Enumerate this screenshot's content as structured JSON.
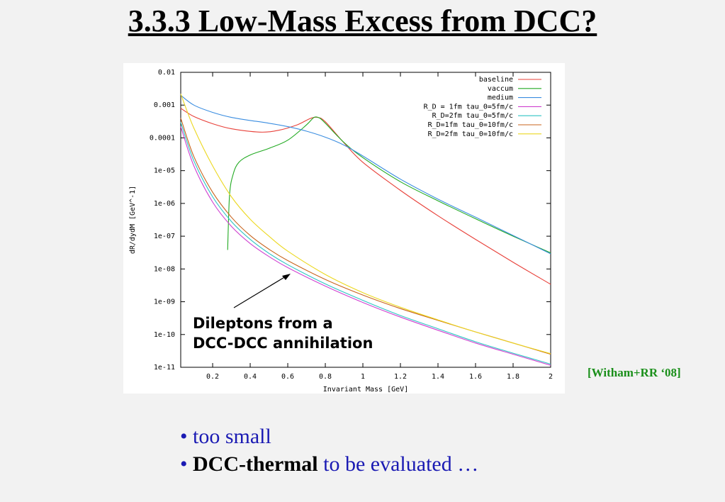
{
  "slide": {
    "title": "3.3.3  Low-Mass Excess from DCC?",
    "citation": "[Witham+RR ‘08]",
    "annotation_line1": "Dileptons from a",
    "annotation_line2": "DCC-DCC annihilation",
    "bullet1": "too small",
    "bullet2_bold": "DCC-thermal",
    "bullet2_rest": "to be evaluated …",
    "bullet_marker": "•"
  },
  "chart_data": {
    "type": "line",
    "xlabel": "Invariant Mass [GeV]",
    "ylabel": "dR/dydM [GeV^-1]",
    "xlim": [
      0.03,
      2.0
    ],
    "ylim": [
      1e-11,
      0.01
    ],
    "yscale": "log",
    "grid": false,
    "legend_position": "top-right",
    "x_ticks": [
      0.2,
      0.4,
      0.6,
      0.8,
      1.0,
      1.2,
      1.4,
      1.6,
      1.8,
      2.0
    ],
    "x_tick_labels": [
      "0.2",
      "0.4",
      "0.6",
      "0.8",
      "1",
      "1.2",
      "1.4",
      "1.6",
      "1.8",
      "2"
    ],
    "y_ticks": [
      1e-11,
      1e-10,
      1e-09,
      1e-08,
      1e-07,
      1e-06,
      1e-05,
      0.0001,
      0.001,
      0.01
    ],
    "y_tick_labels": [
      "1e-11",
      "1e-10",
      "1e-09",
      "1e-08",
      "1e-07",
      "1e-06",
      "1e-05",
      "0.0001",
      "0.001",
      "0.01"
    ],
    "series": [
      {
        "name": "baseline",
        "color": "#e8413a",
        "x": [
          0.03,
          0.1,
          0.2,
          0.3,
          0.45,
          0.55,
          0.65,
          0.72,
          0.76,
          0.8,
          0.9,
          1.0,
          1.2,
          1.4,
          1.6,
          1.8,
          2.0
        ],
        "y": [
          0.0008,
          0.00045,
          0.00027,
          0.00019,
          0.00015,
          0.00017,
          0.00025,
          0.00039,
          0.00042,
          0.00031,
          7e-05,
          1.8e-05,
          2.5e-06,
          4.2e-07,
          8e-08,
          1.6e-08,
          3.4e-09
        ]
      },
      {
        "name": "vaccum",
        "color": "#22aa22",
        "x": [
          0.28,
          0.29,
          0.31,
          0.34,
          0.4,
          0.5,
          0.6,
          0.7,
          0.74,
          0.77,
          0.8,
          0.9,
          1.0,
          1.2,
          1.4,
          1.6,
          1.8,
          2.0
        ],
        "y": [
          3.8e-08,
          1.8e-06,
          8e-06,
          1.8e-05,
          3e-05,
          4.8e-05,
          8.5e-05,
          0.00025,
          0.00042,
          0.0004,
          0.00028,
          7.2e-05,
          2.5e-05,
          4.6e-06,
          1.2e-06,
          3.4e-07,
          1e-07,
          3.1e-08
        ]
      },
      {
        "name": "medium",
        "color": "#3a8de0",
        "x": [
          0.03,
          0.1,
          0.2,
          0.3,
          0.4,
          0.5,
          0.6,
          0.7,
          0.8,
          0.9,
          1.0,
          1.2,
          1.4,
          1.6,
          1.8,
          2.0
        ],
        "y": [
          0.002,
          0.001,
          0.0006,
          0.00042,
          0.00034,
          0.00028,
          0.00022,
          0.00016,
          0.000105,
          6e-05,
          2.8e-05,
          5.5e-06,
          1.35e-06,
          3.8e-07,
          1.05e-07,
          2.9e-08
        ]
      },
      {
        "name": "R_D = 1fm  tau_0=5fm/c",
        "color": "#d040d0",
        "x": [
          0.03,
          0.1,
          0.2,
          0.3,
          0.4,
          0.5,
          0.6,
          0.8,
          1.0,
          1.2,
          1.4,
          1.6,
          1.8,
          2.0
        ],
        "y": [
          0.00022,
          1.4e-05,
          1.1e-06,
          2e-07,
          6e-08,
          2.4e-08,
          1.1e-08,
          3e-09,
          9.5e-10,
          3.4e-10,
          1.35e-10,
          5.5e-11,
          2.5e-11,
          1.15e-11
        ]
      },
      {
        "name": "R_D=2fm  tau_0=5fm/c",
        "color": "#2ec4c4",
        "x": [
          0.03,
          0.1,
          0.2,
          0.3,
          0.4,
          0.5,
          0.6,
          0.8,
          1.0,
          1.2,
          1.4,
          1.6,
          1.8,
          2.0
        ],
        "y": [
          0.0003,
          2e-05,
          1.6e-06,
          2.8e-07,
          8e-08,
          3e-08,
          1.35e-08,
          3.5e-09,
          1.1e-09,
          3.8e-10,
          1.5e-10,
          6e-11,
          2.7e-11,
          1.25e-11
        ]
      },
      {
        "name": "R_D=1fm  tau_0=10fm/c",
        "color": "#c8641e",
        "x": [
          0.03,
          0.1,
          0.2,
          0.3,
          0.4,
          0.5,
          0.6,
          0.8,
          1.0,
          1.2,
          1.4,
          1.6,
          1.8,
          2.0
        ],
        "y": [
          0.0004,
          2.7e-05,
          2.2e-06,
          3.8e-07,
          1.05e-07,
          4e-08,
          1.8e-08,
          4.8e-09,
          1.6e-09,
          6.2e-10,
          2.7e-10,
          1.2e-10,
          5.5e-11,
          2.5e-11
        ]
      },
      {
        "name": "R_D=2fm  tau_0=10fm/c",
        "color": "#ecd820",
        "x": [
          0.03,
          0.1,
          0.2,
          0.3,
          0.4,
          0.5,
          0.6,
          0.8,
          1.0,
          1.2,
          1.4,
          1.6,
          1.8,
          2.0
        ],
        "y": [
          0.0022,
          0.0002,
          1.4e-05,
          1.6e-06,
          3.3e-07,
          1e-07,
          3.5e-08,
          6.8e-09,
          1.9e-09,
          6.8e-10,
          2.8e-10,
          1.2e-10,
          5.5e-11,
          2.6e-11
        ]
      }
    ]
  }
}
